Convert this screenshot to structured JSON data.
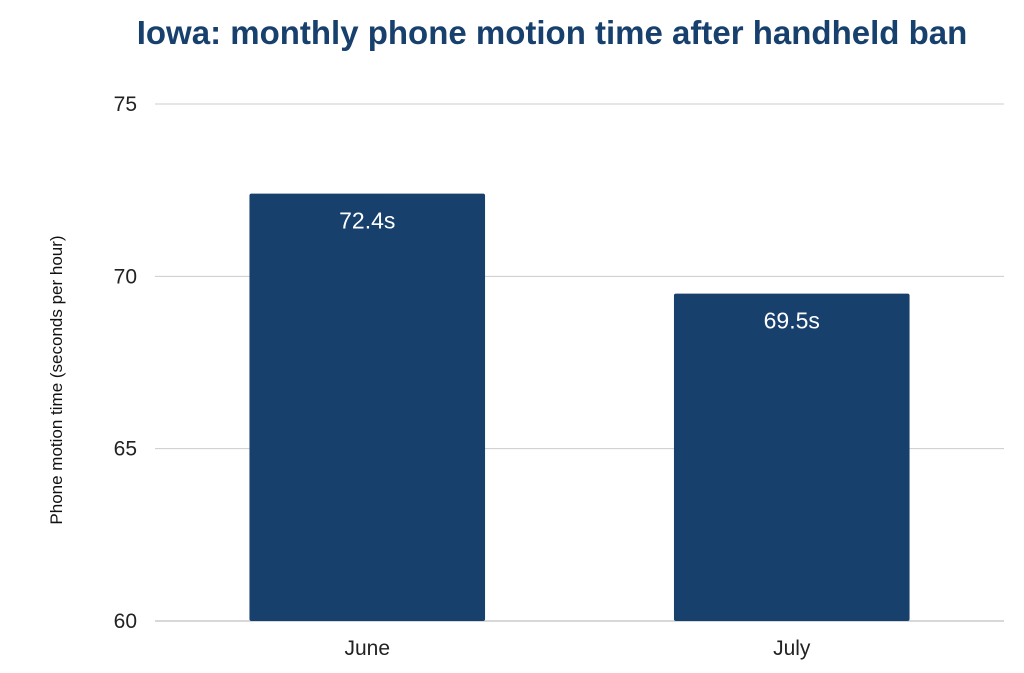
{
  "chart_data": {
    "type": "bar",
    "title": "Iowa: monthly phone motion time after handheld ban",
    "xlabel": "",
    "ylabel": "Phone motion time (seconds per hour)",
    "categories": [
      "June",
      "July"
    ],
    "values": [
      72.4,
      69.5
    ],
    "data_labels": [
      "72.4s",
      "69.5s"
    ],
    "ylim": [
      60,
      75
    ],
    "yticks": [
      60,
      65,
      70,
      75
    ],
    "grid": true,
    "bar_color": "#17406d",
    "title_color": "#17406d",
    "gridline_color": "#cccccc"
  }
}
